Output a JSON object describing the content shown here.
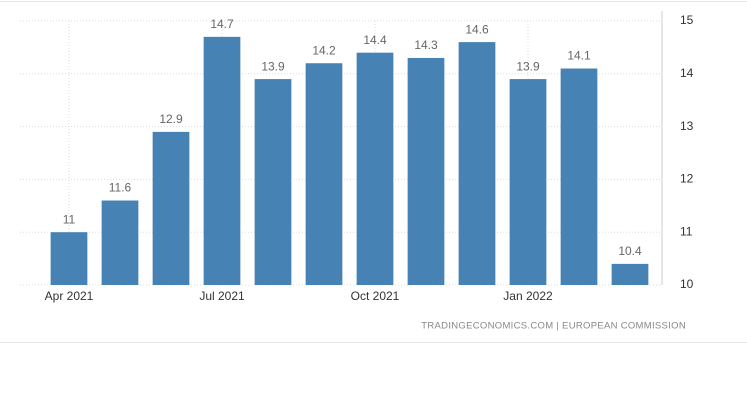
{
  "chart_data": {
    "type": "bar",
    "categories": [
      "Apr 2021",
      null,
      null,
      "Jul 2021",
      null,
      null,
      "Oct 2021",
      null,
      null,
      "Jan 2022",
      null,
      null
    ],
    "values": [
      11,
      11.6,
      12.9,
      14.7,
      13.9,
      14.2,
      14.4,
      14.3,
      14.6,
      13.9,
      14.1,
      10.4
    ],
    "color": "#4682b4",
    "ylim": [
      10,
      15
    ],
    "yticks": [
      10,
      11,
      12,
      13,
      14,
      15
    ],
    "grid": true,
    "source": "TRADINGECONOMICS.COM | EUROPEAN COMMISSION"
  }
}
